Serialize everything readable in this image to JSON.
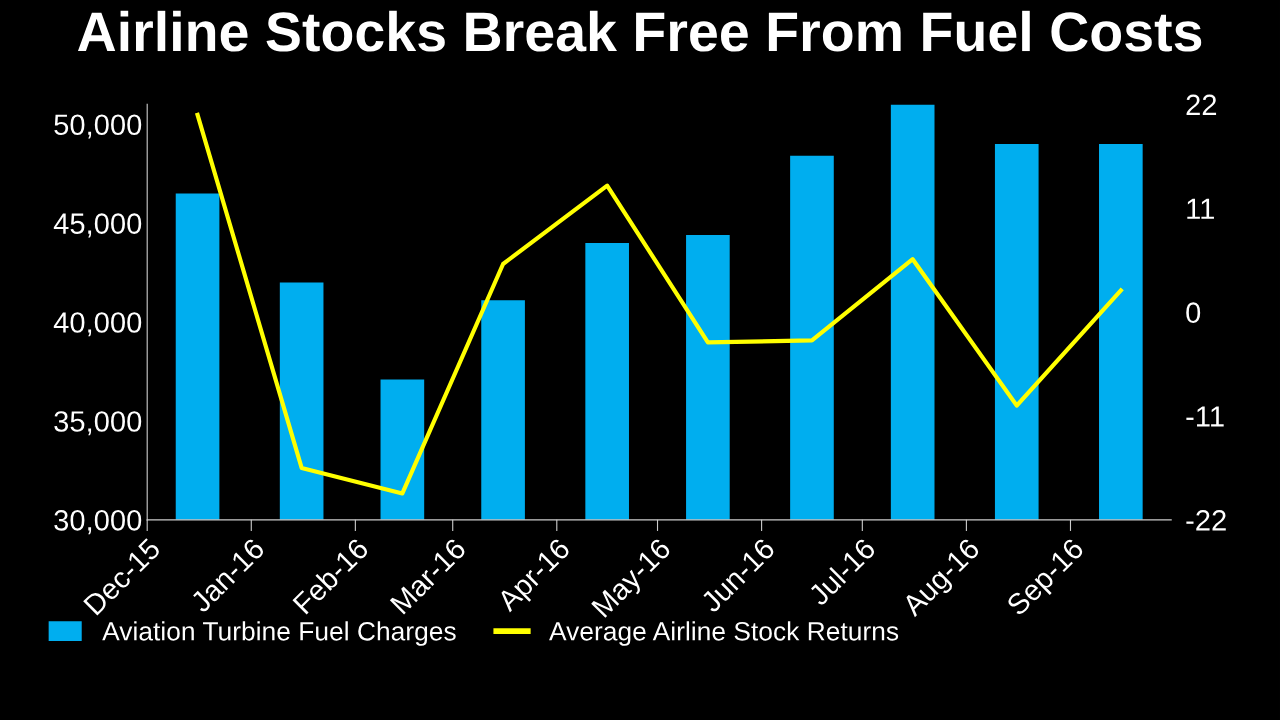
{
  "chart_data": {
    "type": "bar",
    "title": "Airline Stocks Break Free From Fuel Costs",
    "x": [
      "2015-12-16",
      "2016-01-16",
      "2016-02-15",
      "2016-03-16",
      "2016-04-16",
      "2016-05-16",
      "2016-06-16",
      "2016-07-16",
      "2016-08-16",
      "2016-09-16"
    ],
    "series": [
      {
        "name": "Aviation Turbine Fuel Charges",
        "color": "#00aeef",
        "values": [
          46500,
          42000,
          37100,
          41100,
          44000,
          44400,
          48400,
          51000,
          49000,
          49000
        ]
      },
      {
        "name": "Average Airline Stock Returns",
        "type": "line",
        "axis": "y2",
        "color": "#ffff00",
        "values": [
          20.9,
          -16.5,
          -19.2,
          5.1,
          13.4,
          -3.2,
          -3.0,
          5.6,
          -9.9,
          2.3
        ]
      }
    ],
    "xlim": [
      "2015-12-01",
      "2016-10-01"
    ],
    "xticks": [
      {
        "value": "2015-12-01",
        "label": "Dec-15"
      },
      {
        "value": "2016-01-01",
        "label": "Jan-16"
      },
      {
        "value": "2016-02-01",
        "label": "Feb-16"
      },
      {
        "value": "2016-03-01",
        "label": "Mar-16"
      },
      {
        "value": "2016-04-01",
        "label": "Apr-16"
      },
      {
        "value": "2016-05-01",
        "label": "May-16"
      },
      {
        "value": "2016-06-01",
        "label": "Jun-16"
      },
      {
        "value": "2016-07-01",
        "label": "Jul-16"
      },
      {
        "value": "2016-08-01",
        "label": "Aug-16"
      },
      {
        "value": "2016-09-01",
        "label": "Sep-16"
      }
    ],
    "ylim": [
      30000,
      51000
    ],
    "yticks": [
      {
        "value": 30000,
        "label": "30,000"
      },
      {
        "value": 35000,
        "label": "35,000"
      },
      {
        "value": 40000,
        "label": "40,000"
      },
      {
        "value": 45000,
        "label": "45,000"
      },
      {
        "value": 50000,
        "label": "50,000"
      }
    ],
    "y2lim": [
      -22,
      22
    ],
    "y2ticks": [
      -22,
      -11,
      0,
      11,
      22
    ],
    "grid": false,
    "legend": "bottom",
    "marker": "none",
    "line_style": "solid"
  }
}
